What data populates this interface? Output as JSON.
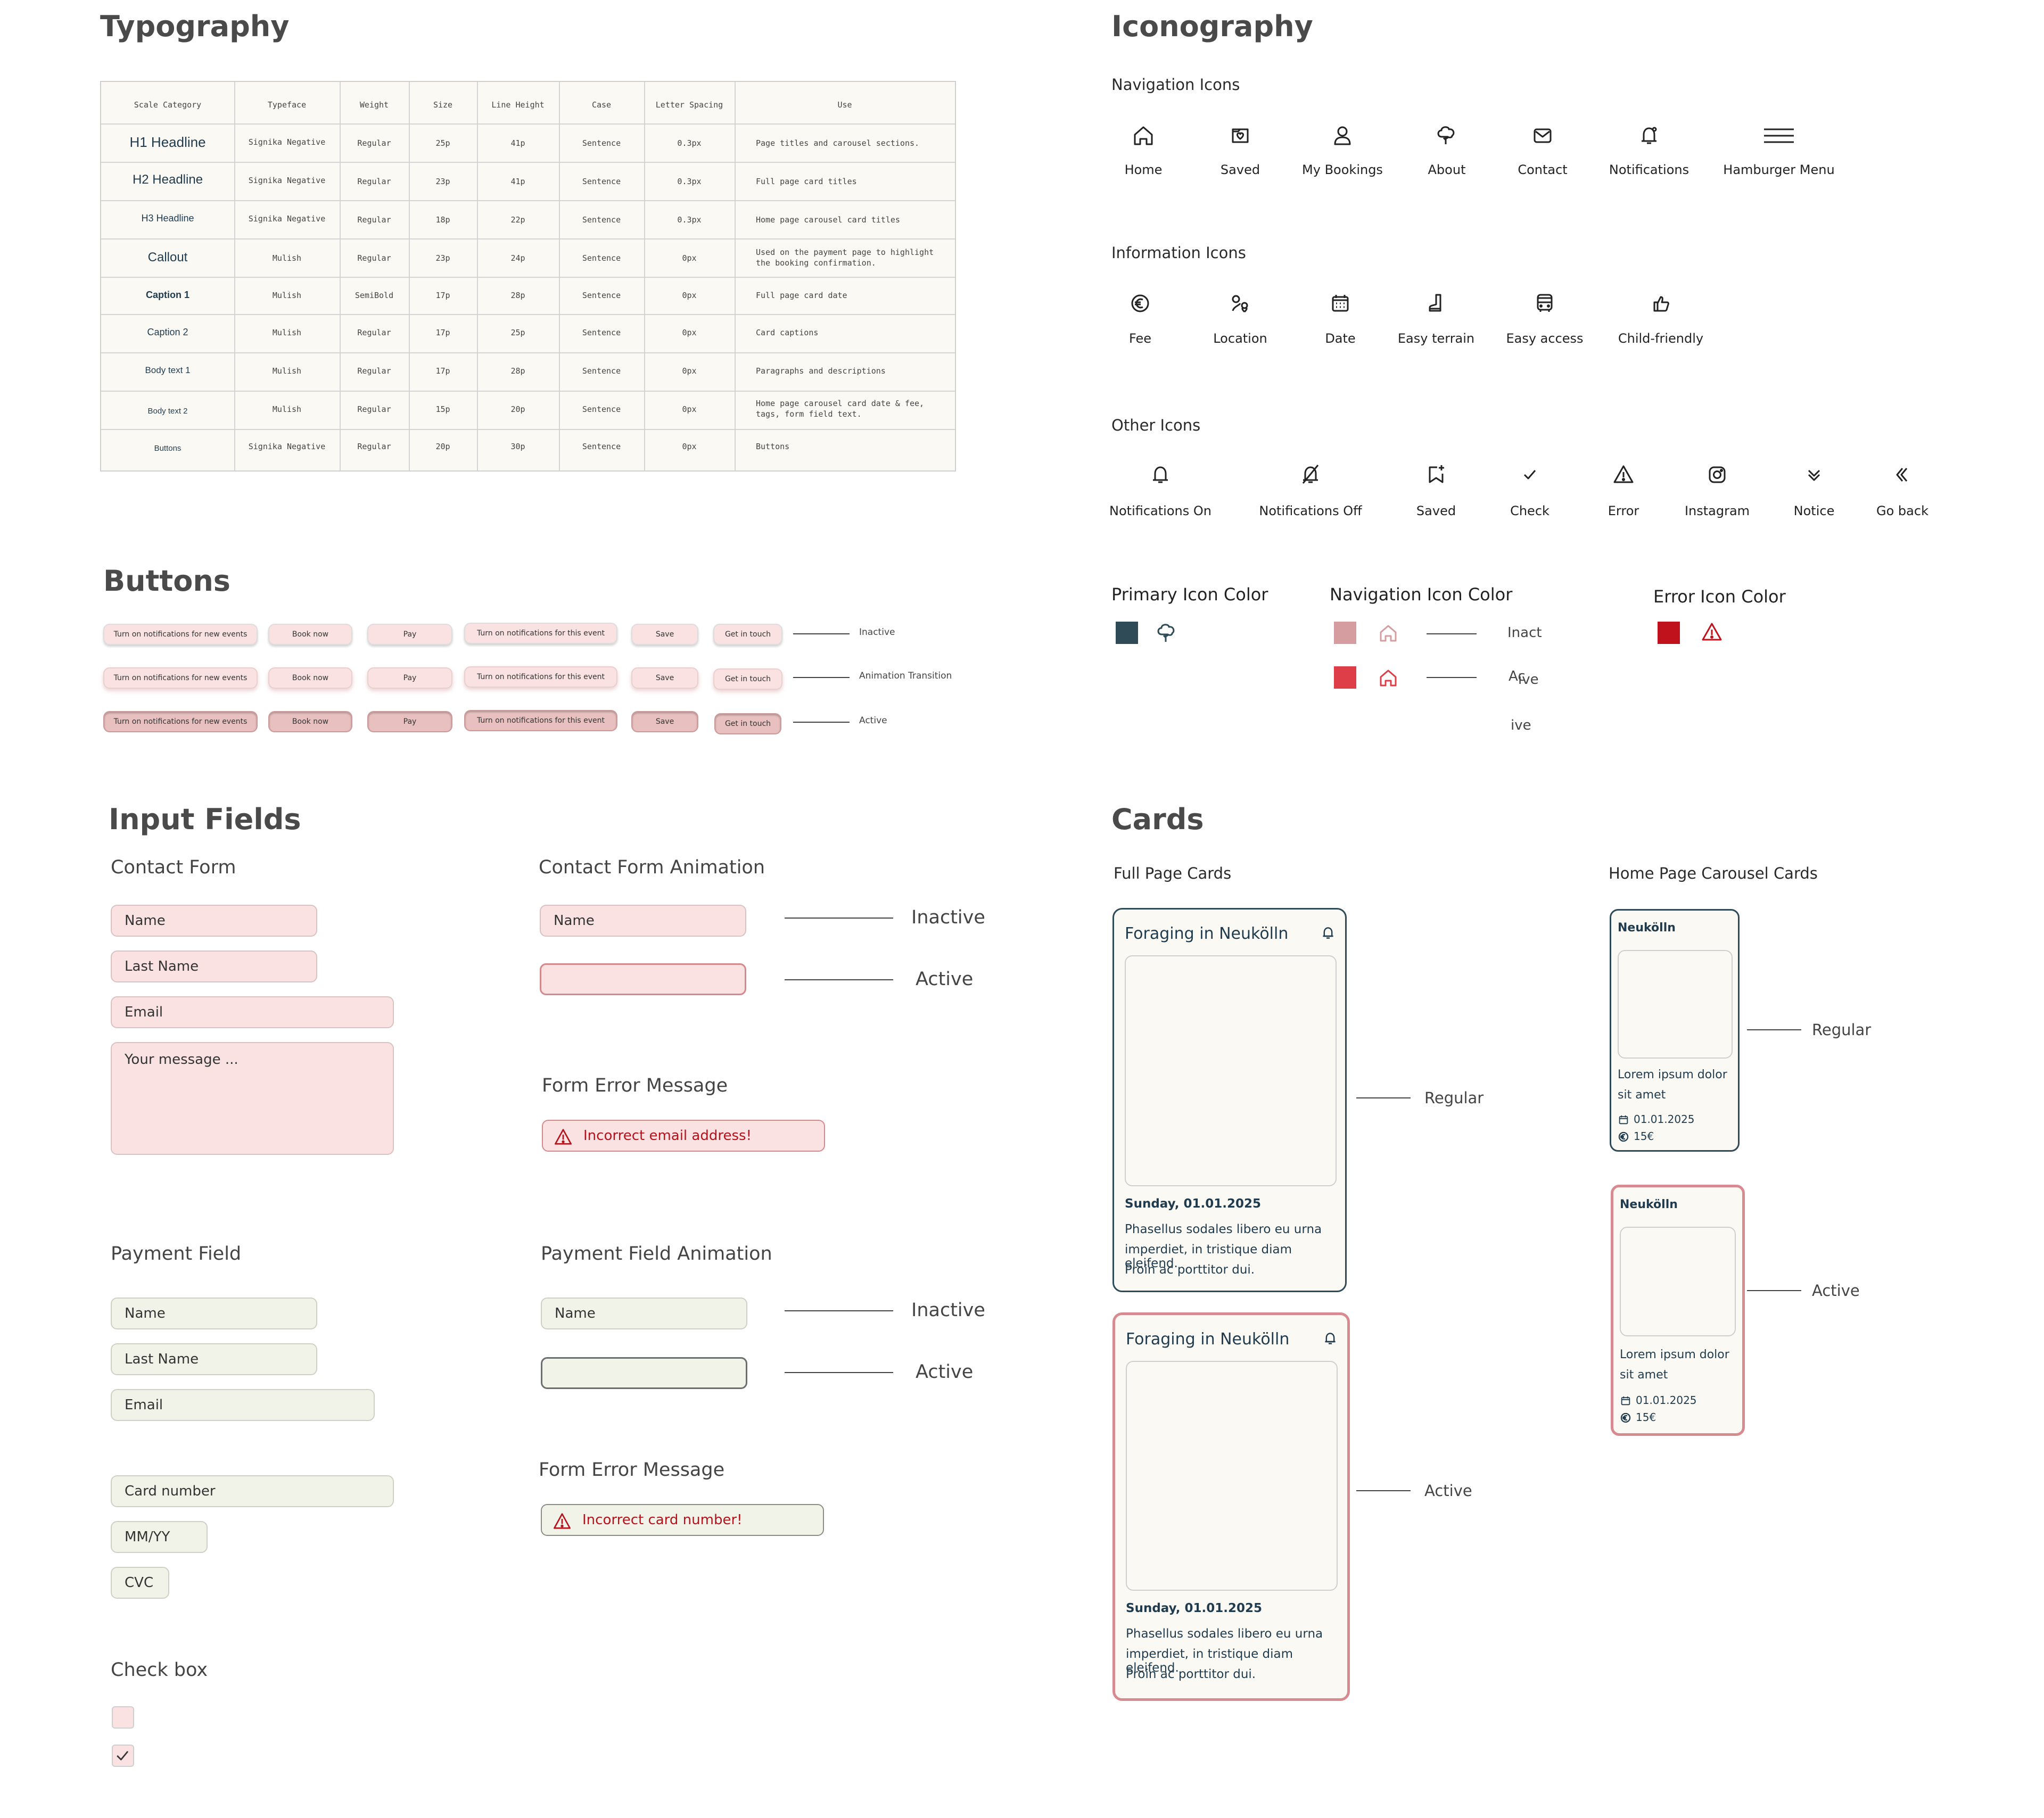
{
  "typography": {
    "title": "Typography",
    "headers": [
      "Scale Category",
      "Typeface",
      "Weight",
      "Size",
      "Line Height",
      "Case",
      "Letter Spacing",
      "Use"
    ],
    "rows": [
      {
        "category": "H1 Headline",
        "typeface": "Signika Negative",
        "weight": "Regular",
        "size": "25p",
        "line_height": "41p",
        "case": "Sentence",
        "spacing": "0.3px",
        "use": "Page titles and carousel sections."
      },
      {
        "category": "H2 Headline",
        "typeface": "Signika Negative",
        "weight": "Regular",
        "size": "23p",
        "line_height": "41p",
        "case": "Sentence",
        "spacing": "0.3px",
        "use": "Full page card titles"
      },
      {
        "category": "H3 Headline",
        "typeface": "Signika Negative",
        "weight": "Regular",
        "size": "18p",
        "line_height": "22p",
        "case": "Sentence",
        "spacing": "0.3px",
        "use": "Home page carousel card titles"
      },
      {
        "category": "Callout",
        "typeface": "Mulish",
        "weight": "Regular",
        "size": "23p",
        "line_height": "24p",
        "case": "Sentence",
        "spacing": "0px",
        "use": "Used on the payment page to highlight the booking confirmation."
      },
      {
        "category": "Caption 1",
        "typeface": "Mulish",
        "weight": "SemiBold",
        "size": "17p",
        "line_height": "28p",
        "case": "Sentence",
        "spacing": "0px",
        "use": "Full page card date"
      },
      {
        "category": "Caption 2",
        "typeface": "Mulish",
        "weight": "Regular",
        "size": "17p",
        "line_height": "25p",
        "case": "Sentence",
        "spacing": "0px",
        "use": "Card captions"
      },
      {
        "category": "Body text 1",
        "typeface": "Mulish",
        "weight": "Regular",
        "size": "17p",
        "line_height": "28p",
        "case": "Sentence",
        "spacing": "0px",
        "use": "Paragraphs and descriptions"
      },
      {
        "category": "Body text 2",
        "typeface": "Mulish",
        "weight": "Regular",
        "size": "15p",
        "line_height": "20p",
        "case": "Sentence",
        "spacing": "0px",
        "use": "Home page carousel card date & fee, tags, form field text."
      },
      {
        "category": "Buttons",
        "typeface": "Signika Negative",
        "weight": "Regular",
        "size": "20p",
        "line_height": "30p",
        "case": "Sentence",
        "spacing": "0px",
        "use": "Buttons"
      }
    ]
  },
  "iconography": {
    "title": "Iconography",
    "navigation_title": "Navigation Icons",
    "navigation": [
      {
        "label": "Home",
        "icon": "home-icon"
      },
      {
        "label": "Saved",
        "icon": "saved-icon"
      },
      {
        "label": "My Bookings",
        "icon": "user-icon"
      },
      {
        "label": "About",
        "icon": "tree-icon"
      },
      {
        "label": "Contact",
        "icon": "mail-icon"
      },
      {
        "label": "Notifications",
        "icon": "bell-icon"
      },
      {
        "label": "Hamburger Menu",
        "icon": "hamburger-icon"
      }
    ],
    "information_title": "Information Icons",
    "information": [
      {
        "label": "Fee",
        "icon": "euro-icon"
      },
      {
        "label": "Location",
        "icon": "location-icon"
      },
      {
        "label": "Date",
        "icon": "calendar-icon"
      },
      {
        "label": "Easy terrain",
        "icon": "boot-icon"
      },
      {
        "label": "Easy access",
        "icon": "bus-icon"
      },
      {
        "label": "Child-friendly",
        "icon": "thumbs-up-icon"
      }
    ],
    "other_title": "Other Icons",
    "other": [
      {
        "label": "Notifications On",
        "icon": "bell-icon"
      },
      {
        "label": "Notifications Off",
        "icon": "bell-off-icon"
      },
      {
        "label": "Saved",
        "icon": "bookmark-plus-icon"
      },
      {
        "label": "Check",
        "icon": "check-icon"
      },
      {
        "label": "Error",
        "icon": "warning-icon"
      },
      {
        "label": "Instagram",
        "icon": "instagram-icon"
      },
      {
        "label": "Notice",
        "icon": "double-chevron-down-icon"
      },
      {
        "label": "Go back",
        "icon": "double-chevron-left-icon"
      }
    ],
    "primary_color_title": "Primary Icon Color",
    "navigation_color_title": "Navigation Icon Color",
    "error_color_title": "Error Icon Color",
    "primary_color": "#2e4b57",
    "nav_inactive_color": "#d59da0",
    "nav_active_color": "#de3e48",
    "error_color": "#c0121c",
    "nav_states": [
      "Inact",
      "Ac",
      "ive",
      "ive"
    ]
  },
  "buttons": {
    "title": "Buttons",
    "labels": [
      "Turn on notifications for new events",
      "Book now",
      "Pay",
      "Turn on notifications for this event",
      "Save",
      "Get in touch"
    ],
    "states": [
      "Inactive",
      "Animation Transition",
      "Active"
    ]
  },
  "inputs": {
    "title": "Input Fields",
    "contact_form_title": "Contact Form",
    "contact_animation_title": "Contact Form Animation",
    "name": "Name",
    "last_name": "Last Name",
    "email": "Email",
    "message": "Your message ...",
    "inactive": "Inactive",
    "active": "Active",
    "error_title": "Form Error Message",
    "email_error": "Incorrect email address!",
    "payment_title": "Payment Field",
    "payment_animation_title": "Payment Field Animation",
    "card_number": "Card number",
    "mmyy": "MM/YY",
    "cvc": "CVC",
    "card_error": "Incorrect card number!",
    "checkbox_title": "Check box"
  },
  "cards": {
    "title": "Cards",
    "full_title": "Full Page Cards",
    "carousel_title": "Home Page Carousel Cards",
    "card_title": "Foraging in Neukölln",
    "card_date": "Sunday, 01.01.2025",
    "card_body_1": "Phasellus sodales libero eu urna",
    "card_body_2": "imperdiet, in tristique diam eleifend.",
    "card_body_3": "Proin ac porttitor dui.",
    "carousel_card_title": "Neukölln",
    "carousel_body_1": "Lorem ipsum dolor",
    "carousel_body_2": "sit amet",
    "carousel_date": "01.01.2025",
    "carousel_fee": "15€",
    "regular": "Regular",
    "active": "Active",
    "regular_border": "#2e4b57",
    "active_border": "#d88a91"
  }
}
